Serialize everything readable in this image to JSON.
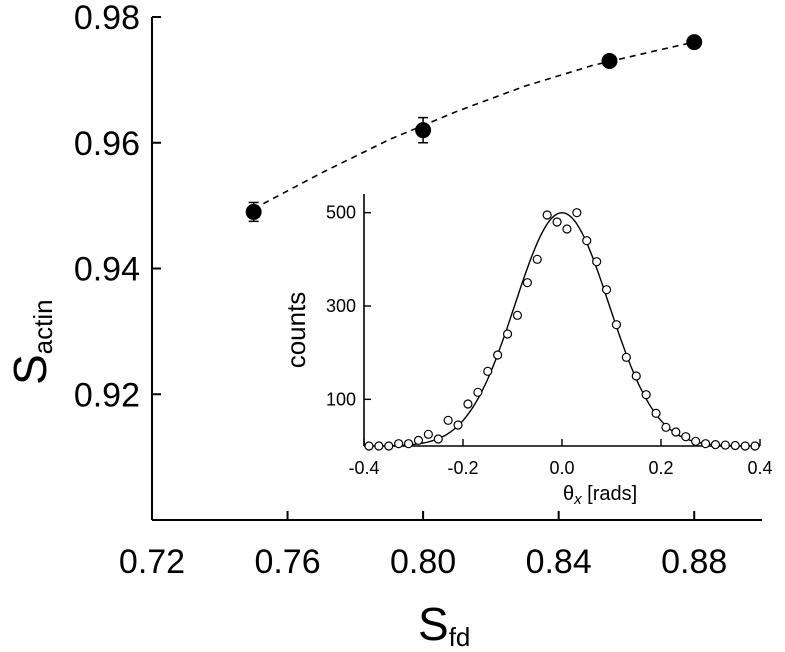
{
  "chart_data": [
    {
      "type": "scatter",
      "role": "main",
      "xlabel": "S",
      "xlabel_sub": "fd",
      "ylabel": "S",
      "ylabel_sub": "actin",
      "xlim": [
        0.72,
        0.9
      ],
      "ylim": [
        0.9,
        0.98
      ],
      "x_ticks": [
        "0.72",
        "0.76",
        "0.80",
        "0.84",
        "0.88"
      ],
      "x_tick_values": [
        0.72,
        0.76,
        0.8,
        0.84,
        0.88
      ],
      "y_ticks": [
        "0.92",
        "0.94",
        "0.96",
        "0.98"
      ],
      "y_tick_values": [
        0.92,
        0.94,
        0.96,
        0.98
      ],
      "series": [
        {
          "name": "data",
          "x": [
            0.75,
            0.8,
            0.855,
            0.88
          ],
          "y": [
            0.949,
            0.962,
            0.973,
            0.976
          ],
          "yerr": [
            0.0015,
            0.002,
            0.0008,
            0.0008
          ]
        },
        {
          "name": "fit",
          "style": "dashed",
          "x": [
            0.75,
            0.77,
            0.79,
            0.81,
            0.83,
            0.85,
            0.87,
            0.88
          ],
          "y": [
            0.9495,
            0.9552,
            0.9605,
            0.965,
            0.969,
            0.9723,
            0.9748,
            0.976
          ]
        }
      ]
    },
    {
      "type": "scatter",
      "role": "inset",
      "xlabel": "θ",
      "xlabel_sub": "x",
      "xlabel_suffix": " [rads]",
      "ylabel": "counts",
      "xlim": [
        -0.4,
        0.4
      ],
      "ylim": [
        0,
        540
      ],
      "x_ticks": [
        "-0.4",
        "-0.2",
        "0.0",
        "0.2",
        "0.4"
      ],
      "x_tick_values": [
        -0.4,
        -0.2,
        0.0,
        0.2,
        0.4
      ],
      "y_ticks": [
        "100",
        "300",
        "500"
      ],
      "y_tick_values": [
        100,
        300,
        500
      ],
      "series": [
        {
          "name": "counts",
          "marker": "open-circle",
          "x": [
            -0.39,
            -0.37,
            -0.35,
            -0.33,
            -0.31,
            -0.29,
            -0.27,
            -0.25,
            -0.23,
            -0.21,
            -0.19,
            -0.17,
            -0.15,
            -0.13,
            -0.11,
            -0.09,
            -0.07,
            -0.05,
            -0.03,
            -0.01,
            0.01,
            0.03,
            0.05,
            0.07,
            0.09,
            0.11,
            0.13,
            0.15,
            0.17,
            0.19,
            0.21,
            0.23,
            0.25,
            0.27,
            0.29,
            0.31,
            0.33,
            0.35,
            0.37,
            0.39
          ],
          "y": [
            0,
            0,
            0,
            5,
            5,
            12,
            25,
            15,
            55,
            45,
            90,
            115,
            160,
            195,
            240,
            280,
            350,
            400,
            495,
            480,
            465,
            500,
            440,
            395,
            335,
            260,
            190,
            150,
            110,
            70,
            40,
            30,
            20,
            10,
            5,
            3,
            2,
            1,
            0,
            0
          ]
        },
        {
          "name": "gaussian-fit",
          "style": "solid",
          "amplitude": 500,
          "center": 0.0,
          "sigma": 0.095
        }
      ]
    }
  ]
}
